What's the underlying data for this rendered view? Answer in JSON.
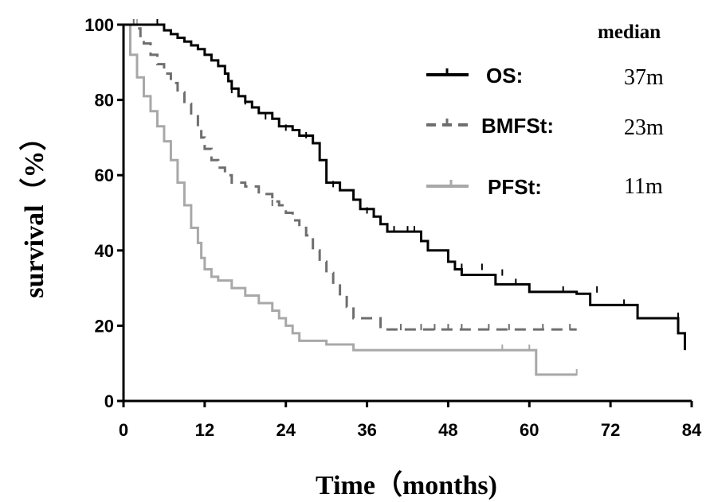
{
  "chart_data": {
    "type": "line",
    "xlabel": "Time（months)",
    "ylabel": "survival（%）",
    "xlim": [
      0,
      84
    ],
    "ylim": [
      0,
      100
    ],
    "xticks": [
      0,
      12,
      24,
      36,
      48,
      60,
      72,
      84
    ],
    "yticks": [
      0,
      20,
      40,
      60,
      80,
      100
    ],
    "grid": false,
    "legend_title": "median",
    "legend_position": "top-right",
    "series": [
      {
        "name": "OS:",
        "median_label": "37m",
        "color": "#000000",
        "dash": "solid",
        "steps": [
          [
            0,
            100
          ],
          [
            5,
            100
          ],
          [
            6,
            98.5
          ],
          [
            7,
            97.5
          ],
          [
            8,
            96.5
          ],
          [
            9,
            95.5
          ],
          [
            10,
            94.5
          ],
          [
            11,
            93.5
          ],
          [
            12,
            92
          ],
          [
            13,
            90.5
          ],
          [
            14,
            89
          ],
          [
            15,
            87
          ],
          [
            15.5,
            85
          ],
          [
            16,
            83
          ],
          [
            17,
            81
          ],
          [
            18,
            79.5
          ],
          [
            19,
            78
          ],
          [
            20,
            76.5
          ],
          [
            22,
            75
          ],
          [
            23,
            73
          ],
          [
            25,
            72
          ],
          [
            26,
            70.5
          ],
          [
            28,
            68.5
          ],
          [
            29,
            64
          ],
          [
            30,
            58
          ],
          [
            32,
            56
          ],
          [
            34,
            53.5
          ],
          [
            35,
            51
          ],
          [
            37,
            49
          ],
          [
            38,
            47
          ],
          [
            39,
            45
          ],
          [
            44,
            42.5
          ],
          [
            45,
            40
          ],
          [
            48,
            37
          ],
          [
            49,
            35
          ],
          [
            50,
            33.5
          ],
          [
            55,
            31
          ],
          [
            60,
            29
          ],
          [
            67,
            28.5
          ],
          [
            69,
            25.5
          ],
          [
            76,
            22
          ],
          [
            82,
            18
          ],
          [
            83,
            13.5
          ]
        ],
        "censors": [
          [
            5,
            100
          ],
          [
            16,
            82
          ],
          [
            18,
            79
          ],
          [
            21,
            75
          ],
          [
            24,
            72
          ],
          [
            27,
            70
          ],
          [
            31,
            57
          ],
          [
            36,
            50
          ],
          [
            40,
            45
          ],
          [
            42,
            45
          ],
          [
            43,
            45
          ],
          [
            50,
            35
          ],
          [
            53,
            35
          ],
          [
            56,
            33.5
          ],
          [
            58,
            31
          ],
          [
            65,
            29
          ],
          [
            70,
            29
          ],
          [
            74,
            25.5
          ],
          [
            82,
            22
          ]
        ]
      },
      {
        "name": "BMFSt:",
        "median_label": "23m",
        "color": "#6e6e6e",
        "dash": "dashed",
        "steps": [
          [
            0,
            100
          ],
          [
            1.5,
            99
          ],
          [
            2.5,
            97
          ],
          [
            3,
            95
          ],
          [
            4,
            92
          ],
          [
            5,
            89.5
          ],
          [
            6,
            87
          ],
          [
            7,
            84.5
          ],
          [
            8,
            82
          ],
          [
            9,
            79
          ],
          [
            10,
            76
          ],
          [
            11,
            73
          ],
          [
            11.5,
            70
          ],
          [
            12,
            67
          ],
          [
            13,
            64
          ],
          [
            14,
            62
          ],
          [
            15,
            60
          ],
          [
            16,
            58
          ],
          [
            18,
            57
          ],
          [
            20,
            55
          ],
          [
            22,
            53
          ],
          [
            23,
            52
          ],
          [
            24,
            50
          ],
          [
            25,
            48
          ],
          [
            26,
            46
          ],
          [
            27,
            44
          ],
          [
            28,
            40
          ],
          [
            29,
            37
          ],
          [
            30,
            34
          ],
          [
            31,
            31
          ],
          [
            32,
            28
          ],
          [
            33,
            25
          ],
          [
            34,
            22
          ],
          [
            38,
            19
          ],
          [
            67,
            19
          ]
        ],
        "censors": [
          [
            1.5,
            100
          ],
          [
            22,
            52
          ],
          [
            41,
            19
          ],
          [
            44,
            19
          ],
          [
            46,
            19
          ],
          [
            48,
            19
          ],
          [
            50,
            19
          ],
          [
            54,
            19
          ],
          [
            57,
            19
          ],
          [
            62,
            19
          ],
          [
            66,
            19
          ]
        ]
      },
      {
        "name": "PFSt:",
        "median_label": "11m",
        "color": "#a8a8a8",
        "dash": "solid",
        "steps": [
          [
            0,
            100
          ],
          [
            1,
            92
          ],
          [
            2,
            86
          ],
          [
            3,
            81
          ],
          [
            4,
            77
          ],
          [
            5,
            73
          ],
          [
            6,
            69
          ],
          [
            7,
            64
          ],
          [
            8,
            58
          ],
          [
            9,
            52
          ],
          [
            10,
            46
          ],
          [
            11,
            42
          ],
          [
            11.5,
            38
          ],
          [
            12,
            35
          ],
          [
            13,
            33
          ],
          [
            14,
            32
          ],
          [
            16,
            30
          ],
          [
            18,
            28
          ],
          [
            20,
            26
          ],
          [
            22,
            24
          ],
          [
            23,
            22
          ],
          [
            24,
            20
          ],
          [
            25,
            18
          ],
          [
            26,
            16
          ],
          [
            30,
            15
          ],
          [
            34,
            13.5
          ],
          [
            60,
            13.5
          ],
          [
            61,
            7
          ],
          [
            67,
            7
          ]
        ],
        "censors": [
          [
            2,
            100
          ],
          [
            20,
            26
          ],
          [
            56,
            13.5
          ],
          [
            60,
            13.5
          ],
          [
            67,
            7
          ]
        ]
      }
    ]
  }
}
